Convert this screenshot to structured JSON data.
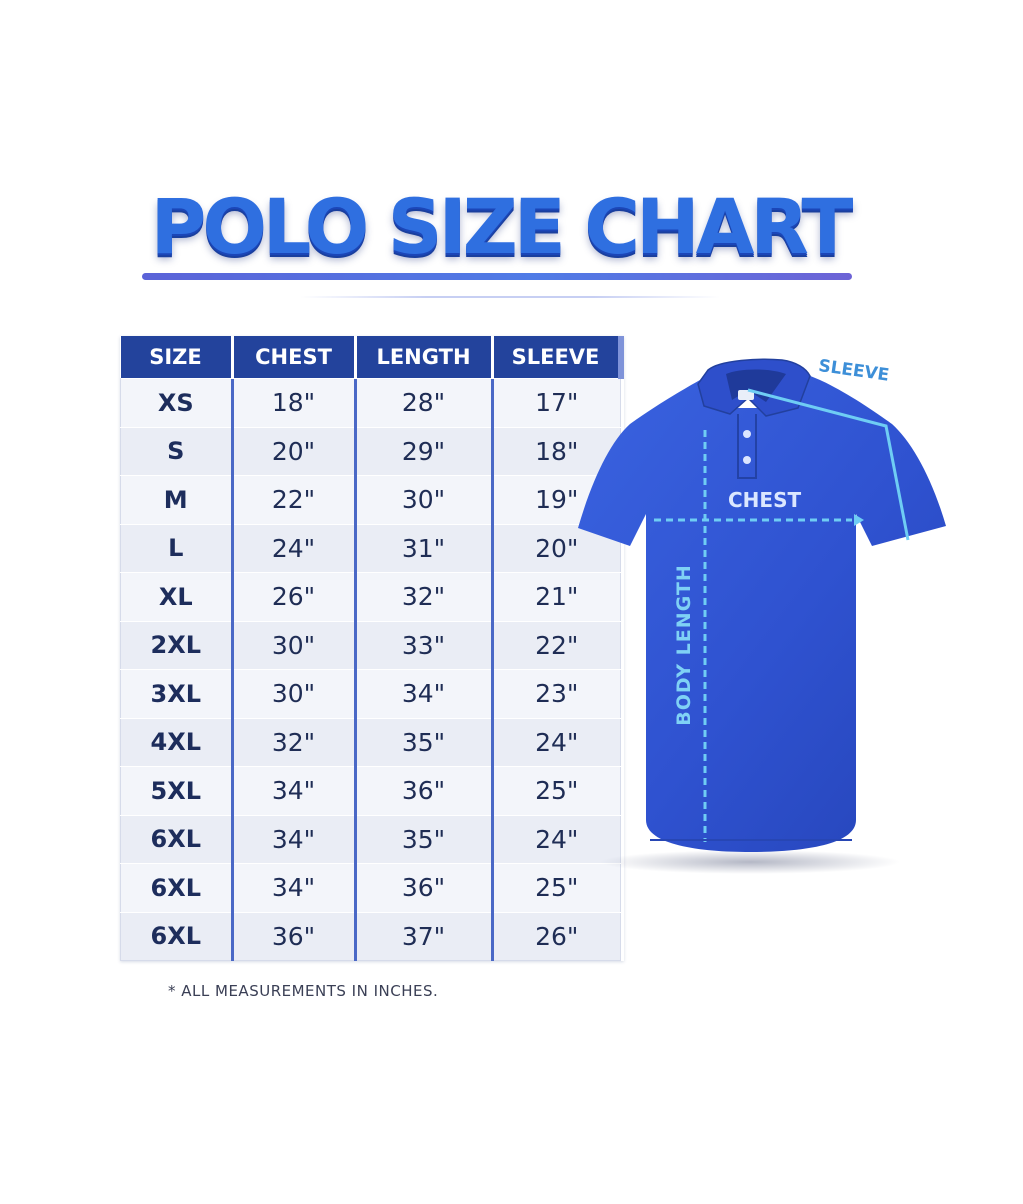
{
  "title": "POLO SIZE CHART",
  "table": {
    "headers": [
      "SIZE",
      "CHEST",
      "LENGTH",
      "SLEEVE"
    ],
    "rows": [
      [
        "XS",
        "18\"",
        "28\"",
        "17\""
      ],
      [
        "S",
        "20\"",
        "29\"",
        "18\""
      ],
      [
        "M",
        "22\"",
        "30\"",
        "19\""
      ],
      [
        "L",
        "24\"",
        "31\"",
        "20\""
      ],
      [
        "XL",
        "26\"",
        "32\"",
        "21\""
      ],
      [
        "2XL",
        "30\"",
        "33\"",
        "22\""
      ],
      [
        "3XL",
        "30\"",
        "34\"",
        "23\""
      ],
      [
        "4XL",
        "32\"",
        "35\"",
        "24\""
      ],
      [
        "5XL",
        "34\"",
        "36\"",
        "25\""
      ],
      [
        "6XL",
        "34\"",
        "35\"",
        "24\""
      ],
      [
        "6XL",
        "34\"",
        "36\"",
        "25\""
      ],
      [
        "6XL",
        "36\"",
        "37\"",
        "26\""
      ]
    ]
  },
  "footnote": "* ALL MEASUREMENTS IN INCHES.",
  "diagram": {
    "sleeve_label": "SLEEVE",
    "chest_label": "CHEST",
    "length_label": "BODY LENGTH",
    "shirt_icon": "polo-shirt-icon"
  },
  "colors": {
    "title": "#2f6fe0",
    "header_bg": "#23439c",
    "column_divider": "#4a68c6",
    "shirt": "#2f52d0",
    "measure_line": "#6fcdf4"
  }
}
